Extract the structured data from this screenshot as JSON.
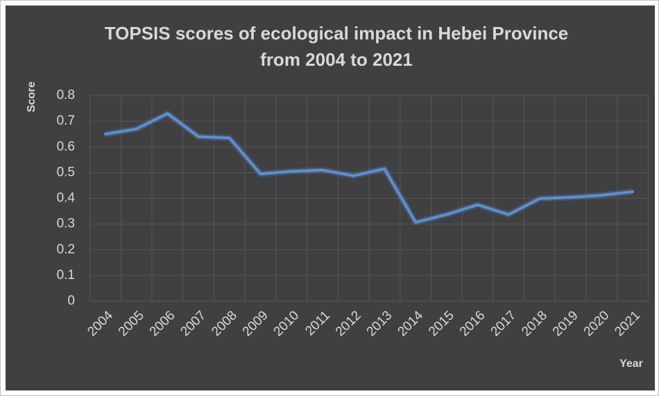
{
  "chart_data": {
    "type": "line",
    "title": [
      "TOPSIS scores of ecological impact in Hebei Province",
      "from 2004 to 2021"
    ],
    "x_label": "Year",
    "y_label": "Score",
    "categories": [
      "2004",
      "2005",
      "2006",
      "2007",
      "2008",
      "2009",
      "2010",
      "2011",
      "2012",
      "2013",
      "2014",
      "2015",
      "2016",
      "2017",
      "2018",
      "2019",
      "2020",
      "2021"
    ],
    "series": [
      {
        "name": "Score",
        "color": "#5b8fd4",
        "values": [
          0.65,
          0.67,
          0.73,
          0.64,
          0.635,
          0.495,
          0.505,
          0.51,
          0.488,
          0.515,
          0.307,
          0.337,
          0.375,
          0.337,
          0.399,
          0.404,
          0.412,
          0.426
        ]
      }
    ],
    "ylim": [
      0,
      0.8
    ],
    "yticks": [
      0,
      0.1,
      0.2,
      0.3,
      0.4,
      0.5,
      0.6,
      0.7,
      0.8
    ],
    "grid": true
  }
}
